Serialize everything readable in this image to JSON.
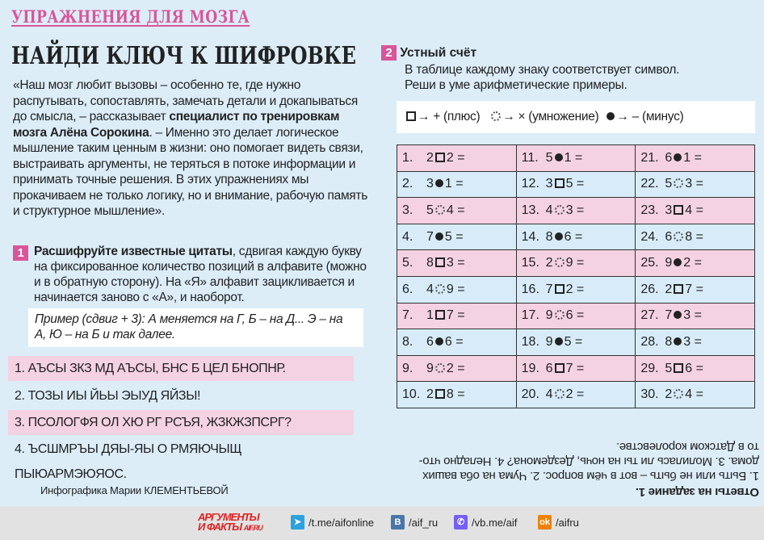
{
  "rubric": "УПРАЖНЕНИЯ ДЛЯ МОЗГА",
  "title": "НАЙДИ КЛЮЧ К ШИФРОВКЕ",
  "intro": {
    "part1": "«Наш мозг любит вызовы – особенно те, где нужно распутывать, сопоставлять, замечать детали и докапываться до смысла, – рассказывает ",
    "bold": "специалист по тренировкам мозга Алёна Сорокина",
    "part2": ". – Именно это делает логическое мышление таким ценным в жизни: оно помогает видеть связи, выстраивать аргументы, не теряться в потоке информации и принимать точные решения. В этих упражнениях мы прокачиваем не только логику, но и внимание, рабочую память и структурное мышление»."
  },
  "task1": {
    "number": "1",
    "bold": "Расшифруйте известные цитаты",
    "text": ", сдвигая каждую букву на фиксированное количество позиций в алфавите (можно и в обратную сторону). На «Я» алфавит зацикливается и начинается заново с «А», и наоборот.",
    "example": "Пример (сдвиг + 3): А меняется на Г, Б – на Д... Э – на А, Ю – на Б и так далее.",
    "ciphers": [
      "1. АЪСЫ ЗКЗ МД АЪСЫ, БНС Б ЦЕЛ БНОПНР.",
      "2. ТОЗЫ ИЫ ЙЬЫ ЭЫУД ЯЙЗЫ!",
      "3. ПСОЛОГФЯ ОЛ ХЮ РГ РСЪЯ, ЖЗКЖЗПСРГ?",
      "4. ЪСШМРЪЫ ДЯЫ-ЯЫ О РМЯЮЧЫЩ ПЫЮАРМЭЮЯОС."
    ]
  },
  "credit": "Инфографика Марии КЛЕМЕНТЬЕВОЙ",
  "task2": {
    "number": "2",
    "title": "Устный счёт",
    "desc1": "В таблице каждому знаку соответствует символ.",
    "desc2": "Реши в уме арифметические примеры.",
    "legend": {
      "plus": "→ + (плюс)",
      "times": "→ × (умножение)",
      "minus": "→ – (минус)"
    },
    "problems": [
      [
        [
          "1.",
          "2",
          "sq",
          "2"
        ],
        [
          "11.",
          "5",
          "fd",
          "1"
        ],
        [
          "21.",
          "6",
          "fd",
          "1"
        ]
      ],
      [
        [
          "2.",
          "3",
          "fd",
          "1"
        ],
        [
          "12.",
          "3",
          "sq",
          "5"
        ],
        [
          "22.",
          "5",
          "dc",
          "3"
        ]
      ],
      [
        [
          "3.",
          "5",
          "dc",
          "4"
        ],
        [
          "13.",
          "4",
          "dc",
          "3"
        ],
        [
          "23.",
          "3",
          "sq",
          "4"
        ]
      ],
      [
        [
          "4.",
          "7",
          "fd",
          "5"
        ],
        [
          "14.",
          "8",
          "fd",
          "6"
        ],
        [
          "24.",
          "6",
          "dc",
          "8"
        ]
      ],
      [
        [
          "5.",
          "8",
          "sq",
          "3"
        ],
        [
          "15.",
          "2",
          "dc",
          "9"
        ],
        [
          "25.",
          "9",
          "fd",
          "2"
        ]
      ],
      [
        [
          "6.",
          "4",
          "dc",
          "9"
        ],
        [
          "16.",
          "7",
          "sq",
          "2"
        ],
        [
          "26.",
          "2",
          "sq",
          "7"
        ]
      ],
      [
        [
          "7.",
          "1",
          "sq",
          "7"
        ],
        [
          "17.",
          "9",
          "dc",
          "6"
        ],
        [
          "27.",
          "7",
          "fd",
          "3"
        ]
      ],
      [
        [
          "8.",
          "6",
          "fd",
          "6"
        ],
        [
          "18.",
          "9",
          "fd",
          "5"
        ],
        [
          "28.",
          "8",
          "fd",
          "3"
        ]
      ],
      [
        [
          "9.",
          "9",
          "dc",
          "2"
        ],
        [
          "19.",
          "6",
          "sq",
          "7"
        ],
        [
          "29.",
          "5",
          "sq",
          "6"
        ]
      ],
      [
        [
          "10.",
          "2",
          "sq",
          "8"
        ],
        [
          "20.",
          "4",
          "dc",
          "2"
        ],
        [
          "30.",
          "2",
          "dc",
          "4"
        ]
      ]
    ],
    "equals": "="
  },
  "answers": {
    "heading": "Ответы на задание 1.",
    "text": "1. Быть или не быть – вот в чём вопрос. 2. Чума на оба ваших дома. 3. Молилась ли ты на ночь, Дездемона? 4. Неладно что-то в Датском королевстве."
  },
  "footer": {
    "logo": "АРГУМЕНТЫ И ФАКТЫ AIF.RU",
    "telegram": "/t.me/aifonline",
    "vk": "/aif_ru",
    "viber": "/vb.me/aif",
    "ok": "/aifru"
  },
  "colors": {
    "accent": "#d9559a",
    "background": "#dcedf8",
    "pink_row": "#f4d2e2",
    "blue_row": "#d7ecf8"
  }
}
